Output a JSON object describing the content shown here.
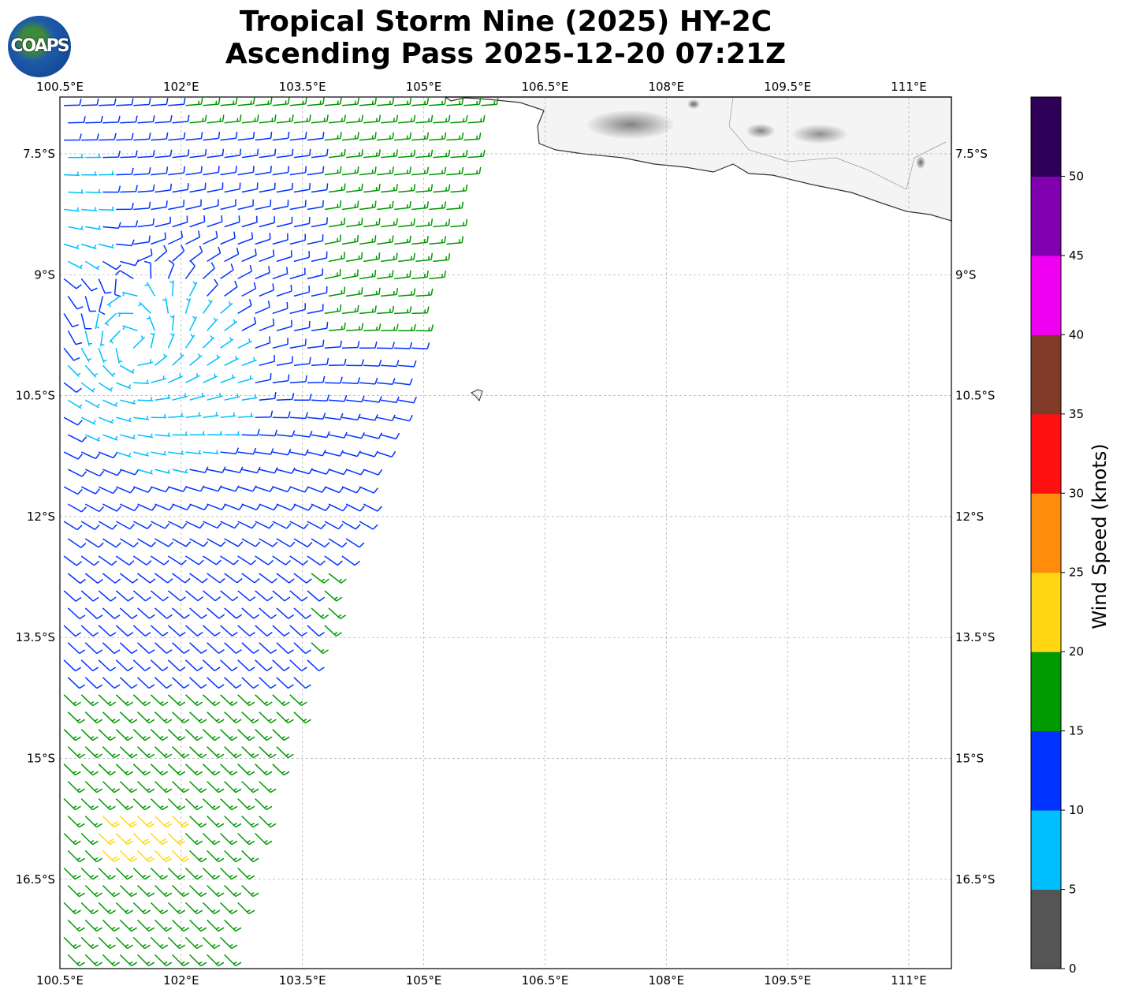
{
  "title": {
    "line1": "Tropical Storm Nine (2025) HY-2C",
    "line2": "Ascending Pass 2025-12-20 07:21Z"
  },
  "logo": {
    "text": "COAPS"
  },
  "map": {
    "lon_range": [
      100.5,
      111.53
    ],
    "lat_range_S": [
      6.8,
      17.63
    ],
    "lon_ticks": [
      {
        "v": 100.5,
        "label": "100.5°E"
      },
      {
        "v": 102,
        "label": "102°E"
      },
      {
        "v": 103.5,
        "label": "103.5°E"
      },
      {
        "v": 105,
        "label": "105°E"
      },
      {
        "v": 106.5,
        "label": "106.5°E"
      },
      {
        "v": 108,
        "label": "108°E"
      },
      {
        "v": 109.5,
        "label": "109.5°E"
      },
      {
        "v": 111,
        "label": "111°E"
      }
    ],
    "lat_ticks": [
      {
        "v": 7.5,
        "label": "7.5°S"
      },
      {
        "v": 9,
        "label": "9°S"
      },
      {
        "v": 10.5,
        "label": "10.5°S"
      },
      {
        "v": 12,
        "label": "12°S"
      },
      {
        "v": 13.5,
        "label": "13.5°S"
      },
      {
        "v": 15,
        "label": "15°S"
      },
      {
        "v": 16.5,
        "label": "16.5°S"
      }
    ],
    "swath_east_edge": [
      [
        105.85,
        6.8
      ],
      [
        105.8,
        7.14
      ],
      [
        104.19,
        12.4
      ],
      [
        103.27,
        14.94
      ],
      [
        102.54,
        17.63
      ]
    ],
    "circulation_center": [
      101.4,
      9.9
    ],
    "wind_zones": [
      {
        "name": "yellow",
        "lon": [
          100.85,
          101.9
        ],
        "latS": [
          15.6,
          16.35
        ],
        "speed": 22
      },
      {
        "name": "green-south",
        "lon": [
          100,
          112
        ],
        "latS": [
          14.1,
          18
        ],
        "speed": 17
      },
      {
        "name": "green-edge",
        "lon": [
          103.6,
          106
        ],
        "latS": [
          12.6,
          14.1
        ],
        "speed": 17
      },
      {
        "name": "green-north",
        "lon": [
          103.7,
          106
        ],
        "latS": [
          6.8,
          9.7
        ],
        "speed": 17
      },
      {
        "name": "green-north-top",
        "lon": [
          102,
          106
        ],
        "latS": [
          6.8,
          7.2
        ],
        "speed": 17
      },
      {
        "name": "cyan-core",
        "center": [
          101.7,
          10.3
        ],
        "radius_deg": 1.15,
        "speed": 8
      },
      {
        "name": "cyan-west",
        "lon": [
          100.5,
          101.0
        ],
        "latS": [
          7.4,
          9.0
        ],
        "speed": 8
      }
    ],
    "default_speed": 12
  },
  "colorbar": {
    "label": "Wind Speed (knots)",
    "bins": [
      {
        "min": 0,
        "max": 5,
        "color": "#555555"
      },
      {
        "min": 5,
        "max": 10,
        "color": "#00bfff"
      },
      {
        "min": 10,
        "max": 15,
        "color": "#0033ff"
      },
      {
        "min": 15,
        "max": 20,
        "color": "#009900"
      },
      {
        "min": 20,
        "max": 25,
        "color": "#ffd712"
      },
      {
        "min": 25,
        "max": 30,
        "color": "#ff8c0a"
      },
      {
        "min": 30,
        "max": 35,
        "color": "#ff1010"
      },
      {
        "min": 35,
        "max": 40,
        "color": "#7f3b28"
      },
      {
        "min": 40,
        "max": 45,
        "color": "#f000f0"
      },
      {
        "min": 45,
        "max": 50,
        "color": "#8000b0"
      },
      {
        "min": 50,
        "max": 55,
        "color": "#2e0057"
      }
    ],
    "ticks": [
      "0",
      "5",
      "10",
      "15",
      "20",
      "25",
      "30",
      "35",
      "40",
      "45",
      "50"
    ]
  }
}
